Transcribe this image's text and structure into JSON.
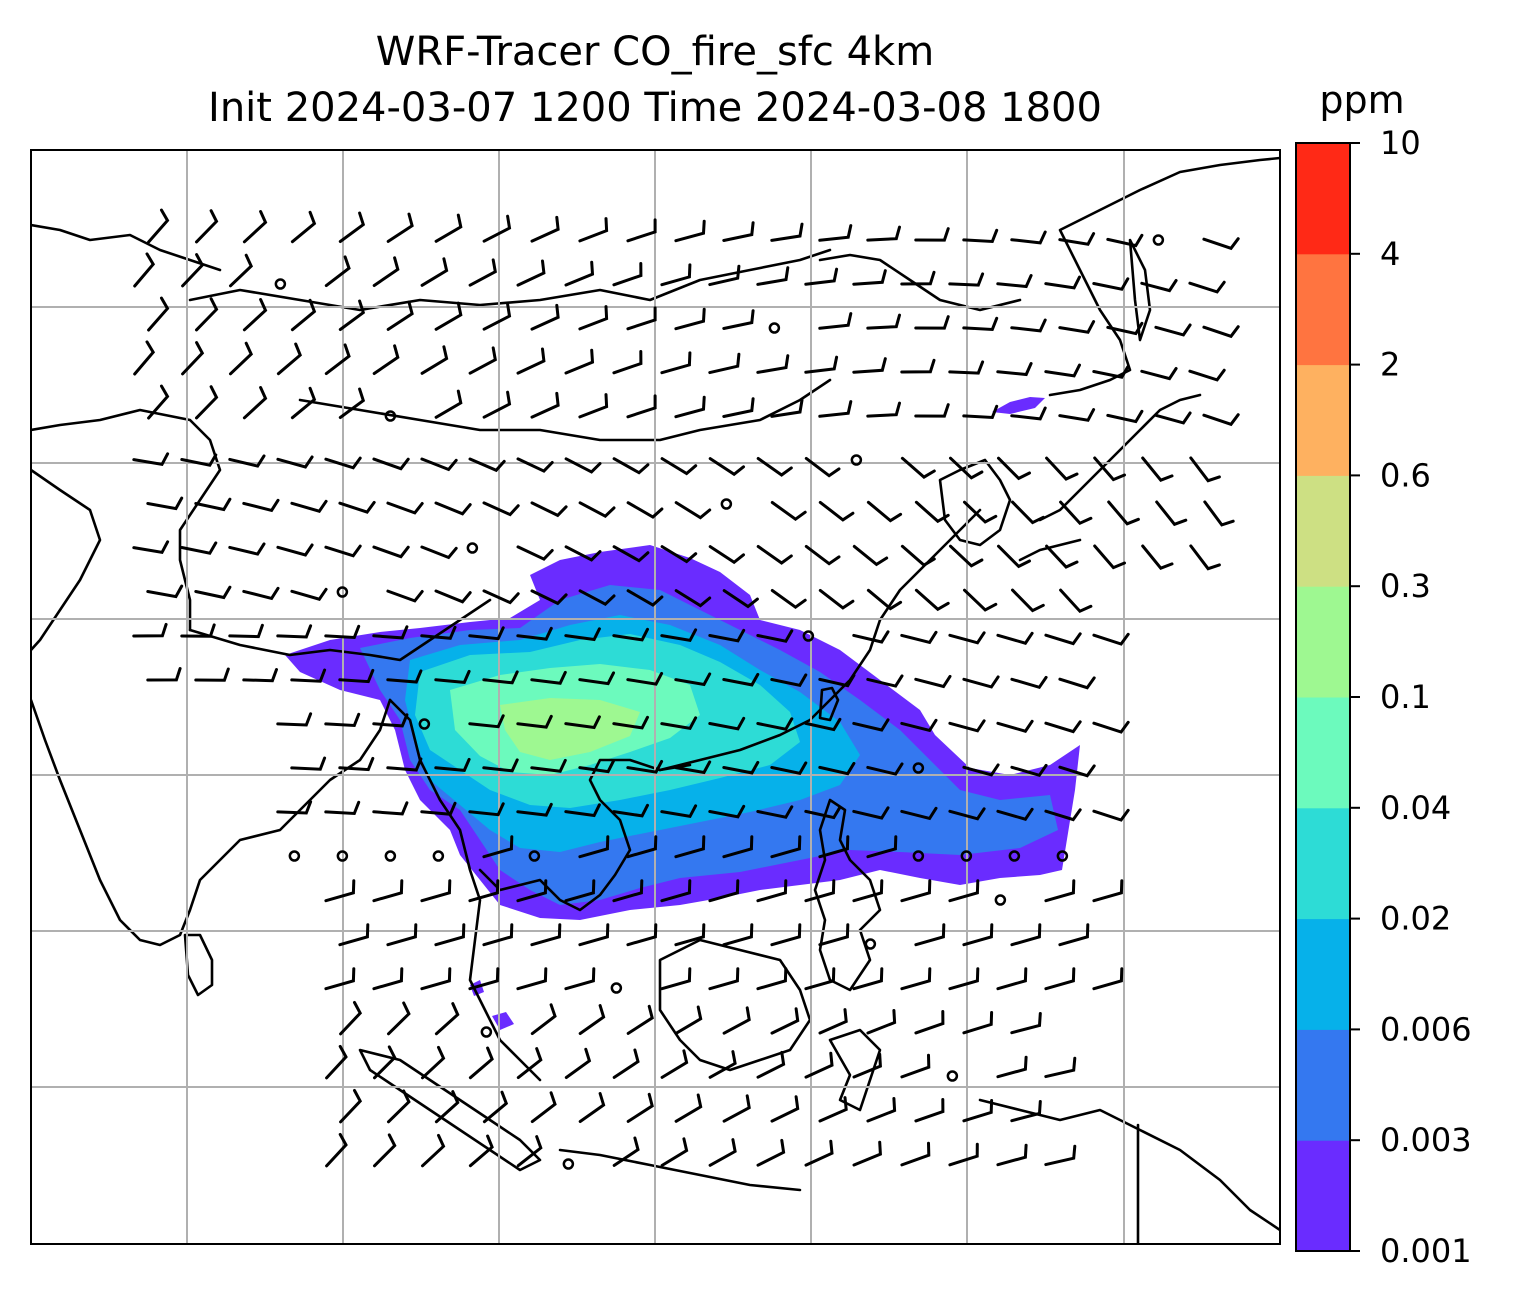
{
  "figure": {
    "title_line1": "WRF-Tracer CO_fire_sfc 4km",
    "title_line2": "Init 2024-03-07 1200 Time 2024-03-08 1800"
  },
  "colorbar": {
    "label": "ppm",
    "ticks": [
      "0.001",
      "0.003",
      "0.006",
      "0.02",
      "0.04",
      "0.1",
      "0.3",
      "0.6",
      "2",
      "4",
      "10"
    ],
    "colors": [
      "#6a2cff",
      "#3478f0",
      "#06b1ea",
      "#2ddcd6",
      "#6cfabd",
      "#9ef891",
      "#cde083",
      "#feb160",
      "#ff7440",
      "#ff2916"
    ]
  },
  "map": {
    "projection": "lat-lon",
    "gridlines": true,
    "field": "CO_fire_sfc",
    "overlay": "wind barbs",
    "grid_color": "#b0b0b0",
    "coastline_color": "#000000"
  }
}
